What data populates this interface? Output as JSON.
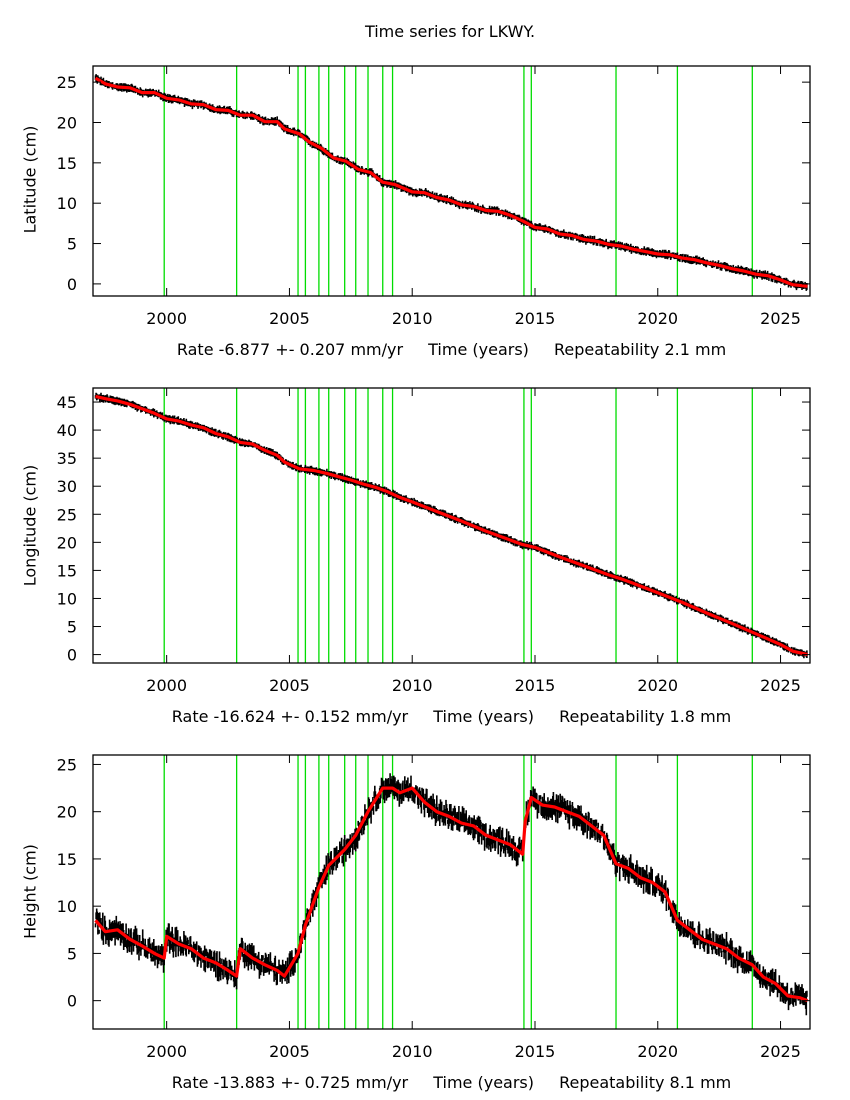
{
  "title": "Time series for LKWY.",
  "colors": {
    "data": "#000000",
    "model": "#ff0000",
    "events": "#00dd00",
    "axis": "#000000"
  },
  "chart_data": [
    {
      "type": "scatter",
      "title": "Time series for LKWY.",
      "ylabel": "Latitude (cm)",
      "xlabel": "Time (years)",
      "rate_label": "Rate -6.877 +- 0.207 mm/yr",
      "repeatability_label": "Repeatability 2.1 mm",
      "xlim": [
        1997.0,
        2026.2
      ],
      "ylim": [
        -1.5,
        27
      ],
      "xticks": [
        2000,
        2005,
        2010,
        2015,
        2020,
        2025
      ],
      "yticks": [
        0,
        5,
        10,
        15,
        20,
        25
      ],
      "event_lines": [
        1999.9,
        2002.85,
        2005.35,
        2005.65,
        2006.2,
        2006.6,
        2007.25,
        2007.7,
        2008.2,
        2008.8,
        2009.2,
        2014.55,
        2014.85,
        2018.3,
        2020.8,
        2023.85
      ],
      "series": [
        {
          "name": "data",
          "x": [
            1997.1,
            1997.5,
            1998.0,
            1998.5,
            1999.0,
            1999.5,
            2000.0,
            2000.5,
            2001.0,
            2001.5,
            2002.0,
            2002.5,
            2003.0,
            2003.5,
            2004.0,
            2004.5,
            2004.8,
            2005.4,
            2005.8,
            2006.3,
            2006.8,
            2007.3,
            2007.8,
            2008.3,
            2008.8,
            2009.3,
            2010.0,
            2010.5,
            2011.0,
            2011.5,
            2012.0,
            2012.5,
            2013.0,
            2013.5,
            2014.0,
            2014.5,
            2015.0,
            2015.5,
            2016.0,
            2016.5,
            2017.0,
            2017.5,
            2018.0,
            2018.5,
            2019.0,
            2019.5,
            2020.0,
            2020.5,
            2021.0,
            2021.5,
            2022.0,
            2022.5,
            2023.0,
            2023.5,
            2024.0,
            2024.5,
            2025.0,
            2025.5,
            2026.1
          ],
          "values": [
            25.5,
            24.8,
            24.4,
            24.3,
            23.7,
            23.7,
            23.0,
            22.8,
            22.3,
            22.2,
            21.6,
            21.5,
            20.9,
            20.9,
            20.1,
            20.1,
            19.2,
            18.6,
            17.6,
            16.8,
            15.6,
            15.2,
            14.2,
            13.8,
            12.6,
            12.3,
            11.4,
            11.3,
            10.7,
            10.4,
            9.8,
            9.6,
            9.1,
            9.0,
            8.5,
            7.8,
            7.0,
            6.8,
            6.2,
            6.0,
            5.5,
            5.3,
            4.9,
            4.7,
            4.3,
            4.0,
            3.7,
            3.6,
            3.2,
            3.0,
            2.6,
            2.3,
            1.9,
            1.6,
            1.2,
            1.0,
            0.5,
            -0.1,
            -0.3
          ]
        }
      ]
    },
    {
      "type": "scatter",
      "ylabel": "Longitude (cm)",
      "xlabel": "Time (years)",
      "rate_label": "Rate -16.624 +- 0.152 mm/yr",
      "repeatability_label": "Repeatability 1.8 mm",
      "xlim": [
        1997.0,
        2026.2
      ],
      "ylim": [
        -1.5,
        47.5
      ],
      "xticks": [
        2000,
        2005,
        2010,
        2015,
        2020,
        2025
      ],
      "yticks": [
        0,
        5,
        10,
        15,
        20,
        25,
        30,
        35,
        40,
        45
      ],
      "event_lines": [
        1999.9,
        2002.85,
        2005.35,
        2005.65,
        2006.2,
        2006.6,
        2007.25,
        2007.7,
        2008.2,
        2008.8,
        2009.2,
        2014.55,
        2014.85,
        2018.3,
        2020.8,
        2023.85
      ],
      "series": [
        {
          "name": "data",
          "x": [
            1997.1,
            1997.5,
            1998.0,
            1998.5,
            1999.0,
            1999.5,
            2000.0,
            2000.5,
            2001.0,
            2001.5,
            2002.0,
            2002.5,
            2003.0,
            2003.5,
            2004.0,
            2004.5,
            2004.8,
            2005.4,
            2006.0,
            2006.5,
            2007.0,
            2007.5,
            2008.0,
            2008.5,
            2009.0,
            2009.5,
            2010.0,
            2011.0,
            2012.0,
            2013.0,
            2014.0,
            2014.5,
            2015.0,
            2016.0,
            2017.0,
            2018.0,
            2018.5,
            2019.0,
            2020.0,
            2021.0,
            2022.0,
            2023.0,
            2024.0,
            2025.0,
            2025.5,
            2026.1
          ],
          "values": [
            46.0,
            45.6,
            45.2,
            44.6,
            43.8,
            43.0,
            42.0,
            41.6,
            40.9,
            40.4,
            39.4,
            38.8,
            37.8,
            37.5,
            36.4,
            35.5,
            34.3,
            33.1,
            32.8,
            32.3,
            31.7,
            31.1,
            30.4,
            29.8,
            29.0,
            28.0,
            27.2,
            25.5,
            23.8,
            22.0,
            20.4,
            19.6,
            19.1,
            17.4,
            15.8,
            14.2,
            13.5,
            12.7,
            11.0,
            9.3,
            7.4,
            5.6,
            3.7,
            1.8,
            0.6,
            0.0
          ]
        }
      ]
    },
    {
      "type": "scatter",
      "ylabel": "Height (cm)",
      "xlabel": "Time (years)",
      "rate_label": "Rate -13.883 +- 0.725 mm/yr",
      "repeatability_label": "Repeatability 8.1 mm",
      "xlim": [
        1997.0,
        2026.2
      ],
      "ylim": [
        -3,
        26
      ],
      "xticks": [
        2000,
        2005,
        2010,
        2015,
        2020,
        2025
      ],
      "yticks": [
        0,
        5,
        10,
        15,
        20,
        25
      ],
      "event_lines": [
        1999.9,
        2002.85,
        2005.35,
        2005.65,
        2006.2,
        2006.6,
        2007.25,
        2007.7,
        2008.2,
        2008.8,
        2009.2,
        2014.55,
        2014.85,
        2018.3,
        2020.8,
        2023.85
      ],
      "series": [
        {
          "name": "model",
          "x": [
            1997.1,
            1997.5,
            1998.0,
            1998.5,
            1999.0,
            1999.5,
            1999.9,
            2000.0,
            2000.5,
            2001.0,
            2001.5,
            2002.0,
            2002.5,
            2002.85,
            2003.0,
            2003.5,
            2004.0,
            2004.5,
            2004.8,
            2005.35,
            2005.65,
            2006.2,
            2006.6,
            2007.25,
            2007.7,
            2008.2,
            2008.8,
            2009.2,
            2009.5,
            2010.0,
            2010.5,
            2011.0,
            2011.5,
            2012.0,
            2012.5,
            2013.0,
            2013.5,
            2014.0,
            2014.5,
            2014.6,
            2014.85,
            2015.3,
            2015.8,
            2016.3,
            2016.8,
            2017.3,
            2017.8,
            2018.3,
            2018.8,
            2019.3,
            2019.8,
            2020.3,
            2020.8,
            2021.3,
            2021.8,
            2022.3,
            2022.8,
            2023.3,
            2023.85,
            2024.3,
            2024.8,
            2025.3,
            2025.8,
            2026.1
          ],
          "values": [
            8.5,
            7.3,
            7.5,
            6.5,
            5.8,
            5.0,
            4.5,
            6.8,
            6.0,
            5.5,
            4.5,
            4.0,
            3.2,
            2.6,
            5.5,
            4.5,
            3.8,
            3.2,
            2.6,
            5.0,
            8.0,
            12.0,
            14.3,
            16.0,
            17.5,
            20.0,
            22.5,
            22.5,
            22.0,
            22.5,
            21.0,
            20.0,
            19.5,
            18.8,
            18.5,
            17.5,
            17.0,
            16.5,
            15.5,
            19.0,
            21.5,
            20.7,
            20.5,
            20.0,
            19.5,
            18.5,
            17.5,
            14.5,
            14.0,
            13.0,
            12.5,
            11.5,
            8.5,
            7.5,
            6.5,
            6.0,
            5.5,
            4.5,
            3.8,
            2.5,
            1.8,
            0.5,
            0.3,
            0.0
          ]
        }
      ]
    }
  ],
  "panels": [
    {
      "ylabel": "Latitude (cm)",
      "rate": "Rate -6.877 +- 0.207 mm/yr",
      "xlabel": "Time (years)",
      "repeat": "Repeatability 2.1 mm"
    },
    {
      "ylabel": "Longitude (cm)",
      "rate": "Rate -16.624 +- 0.152 mm/yr",
      "xlabel": "Time (years)",
      "repeat": "Repeatability 1.8 mm"
    },
    {
      "ylabel": "Height (cm)",
      "rate": "Rate -13.883 +- 0.725 mm/yr",
      "xlabel": "Time (years)",
      "repeat": "Repeatability 8.1 mm"
    }
  ]
}
